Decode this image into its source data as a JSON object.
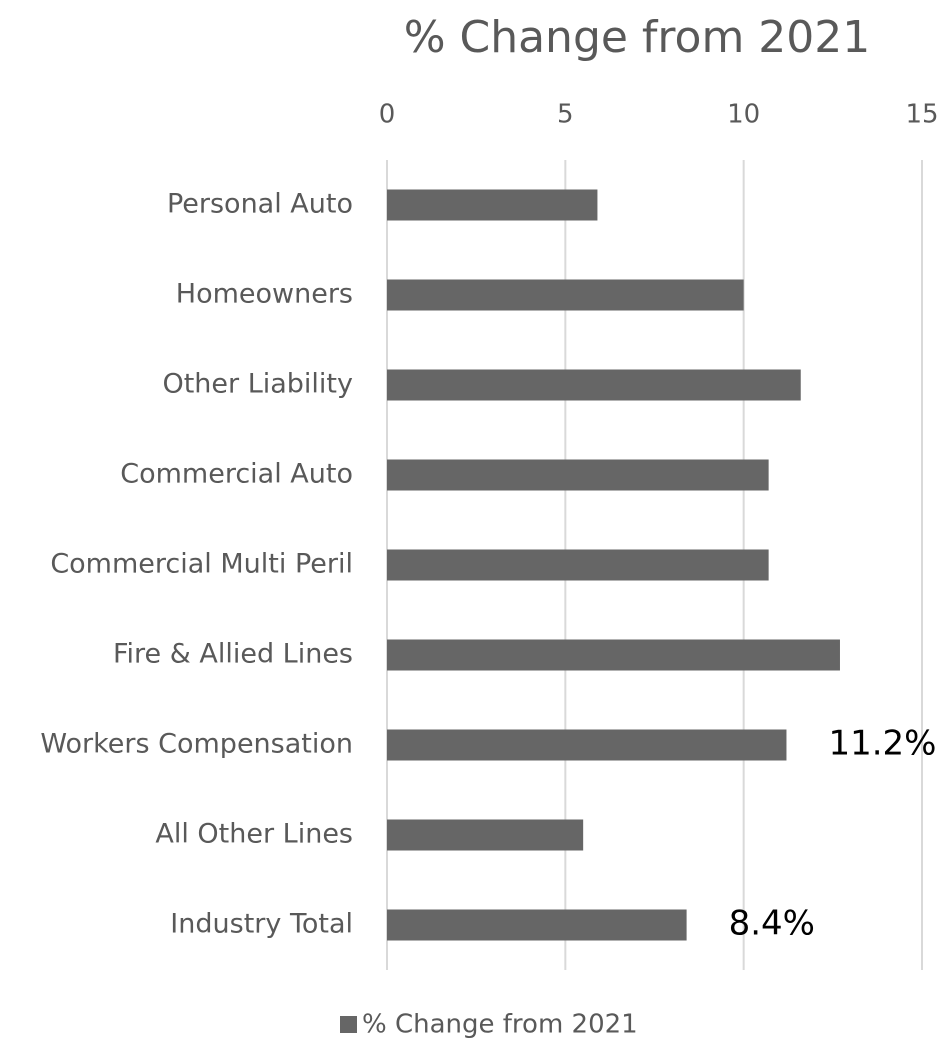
{
  "chart_data": {
    "type": "bar",
    "orientation": "horizontal",
    "title": "% Change from 2021",
    "categories": [
      "Personal Auto",
      "Homeowners",
      "Other Liability",
      "Commercial Auto",
      "Commercial Multi Peril",
      "Fire & Allied Lines",
      "Workers Compensation",
      "All Other Lines",
      "Industry Total"
    ],
    "series": [
      {
        "name": "% Change from 2021",
        "color": "#666666",
        "values": [
          5.9,
          10.0,
          11.6,
          10.7,
          10.7,
          12.7,
          11.2,
          5.5,
          8.4
        ],
        "value_labels": [
          null,
          null,
          null,
          null,
          null,
          null,
          "11.2%",
          null,
          "8.4%"
        ]
      }
    ],
    "xlim": [
      0,
      15
    ],
    "xticks": [
      0,
      5,
      10,
      15
    ],
    "grid": true,
    "legend": "bottom"
  }
}
